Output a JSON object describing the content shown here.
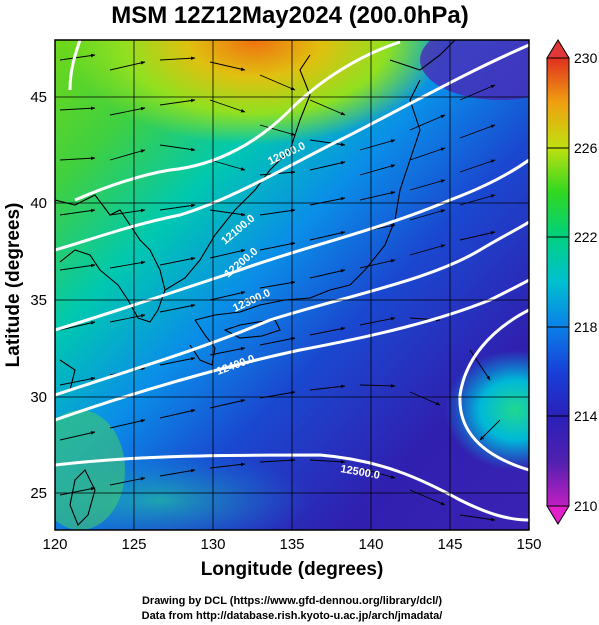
{
  "title": "MSM 12Z12May2024 (200.0hPa)",
  "xlabel": "Longitude (degrees)",
  "ylabel": "Latitude  (degrees)",
  "x_ticks": [
    "120",
    "125",
    "130",
    "135",
    "140",
    "145",
    "150"
  ],
  "y_ticks": [
    "25",
    "30",
    "35",
    "40",
    "45"
  ],
  "colorbar": {
    "ticks": [
      "210",
      "214",
      "218",
      "222",
      "226",
      "230"
    ],
    "min": 210,
    "max": 230
  },
  "contour_labels": [
    "12000.0",
    "12100.0",
    "12200.0",
    "12300.0",
    "12400.0",
    "12500.0"
  ],
  "footer": {
    "line1": "Drawing by DCL (https://www.gfd-dennou.org/library/dcl/)",
    "line2": "Data from http://database.rish.kyoto-u.ac.jp/arch/jmadata/"
  },
  "map": {
    "lon_range": [
      120,
      150
    ],
    "lat_range": [
      22.6,
      48
    ],
    "colors": [
      "#c020c0",
      "#3020b0",
      "#1a48d0",
      "#0a8ee8",
      "#00c8c0",
      "#10d060",
      "#90e010",
      "#e0e010",
      "#f08010",
      "#e03020"
    ]
  }
}
